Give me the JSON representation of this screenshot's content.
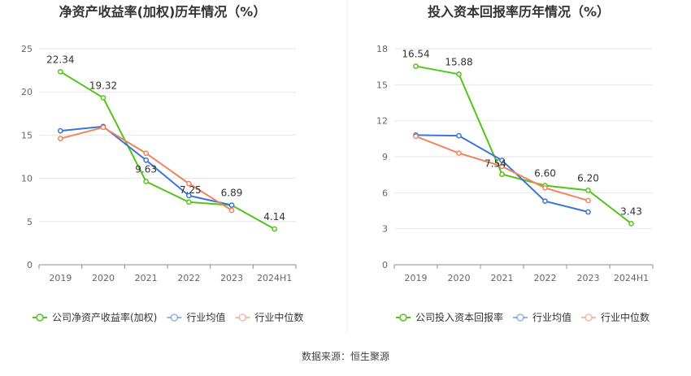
{
  "source": "数据来源：恒生聚源",
  "colors": {
    "company": "#52c41a",
    "avg": "#3a75d6",
    "median": "#f0845e",
    "axis": "#8c8c8c",
    "grid": "#e6e6e6"
  },
  "chart_data": [
    {
      "type": "line",
      "title": "净资产收益率(加权)历年情况（%）",
      "categories": [
        "2019",
        "2020",
        "2021",
        "2022",
        "2023",
        "2024H1"
      ],
      "ylim": [
        0,
        25
      ],
      "yticks": [
        0,
        5,
        10,
        15,
        20,
        25
      ],
      "grid": true,
      "legend_position": "bottom-left",
      "series": [
        {
          "name": "公司净资产收益率(加权)",
          "color": "#52c41a",
          "labeled": true,
          "values": [
            22.34,
            19.32,
            9.63,
            7.25,
            6.89,
            4.14
          ],
          "labels": [
            "22.34",
            "19.32",
            "9.63",
            "7.25",
            "6.89",
            "4.14"
          ]
        },
        {
          "name": "行业均值",
          "color": "#3a75d6",
          "labeled": false,
          "values": [
            15.5,
            16.0,
            12.1,
            8.0,
            6.9,
            null
          ]
        },
        {
          "name": "行业中位数",
          "color": "#f0845e",
          "labeled": false,
          "values": [
            14.6,
            15.9,
            12.9,
            9.4,
            6.3,
            null
          ]
        }
      ]
    },
    {
      "type": "line",
      "title": "投入资本回报率历年情况（%）",
      "categories": [
        "2019",
        "2020",
        "2021",
        "2022",
        "2023",
        "2024H1"
      ],
      "ylim": [
        0,
        18
      ],
      "yticks": [
        0,
        3,
        6,
        9,
        12,
        15,
        18
      ],
      "grid": true,
      "legend_position": "bottom-left",
      "series": [
        {
          "name": "公司投入资本回报率",
          "color": "#52c41a",
          "labeled": true,
          "values": [
            16.54,
            15.88,
            7.54,
            6.6,
            6.2,
            3.43
          ],
          "labels": [
            "16.54",
            "15.88",
            "7.54",
            "6.60",
            "6.20",
            "3.43"
          ]
        },
        {
          "name": "行业均值",
          "color": "#3a75d6",
          "labeled": false,
          "values": [
            10.8,
            10.75,
            8.7,
            5.3,
            4.4,
            null
          ]
        },
        {
          "name": "行业中位数",
          "color": "#f0845e",
          "labeled": false,
          "values": [
            10.7,
            9.3,
            8.2,
            6.4,
            5.35,
            null
          ]
        }
      ]
    }
  ]
}
